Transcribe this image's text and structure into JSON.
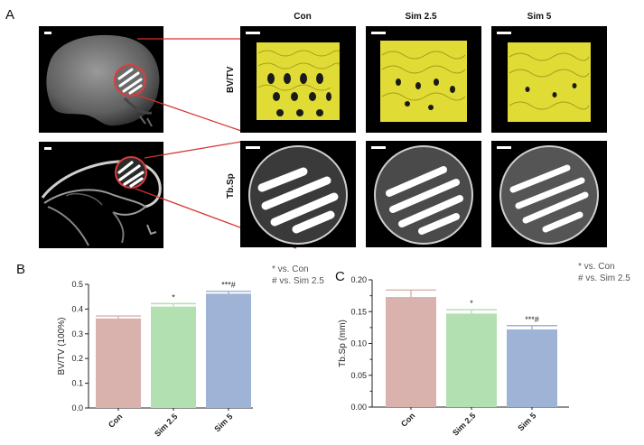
{
  "panels": {
    "a": "A",
    "b": "B",
    "c": "C"
  },
  "micro_ct": {
    "columns": [
      "Con",
      "Sim 2.5",
      "Sim 5"
    ],
    "row_labels": [
      "BV/TV",
      "Tb.Sp"
    ]
  },
  "colors": {
    "con": "#d9b1ad",
    "sim25": "#b3e0b0",
    "sim5": "#9eb3d6",
    "bone_render": "#e8e23a",
    "highlight": "#e03b3b"
  },
  "chart_data": [
    {
      "type": "bar",
      "categories": [
        "Con",
        "Sim 2.5",
        "Sim 5"
      ],
      "values": [
        0.362,
        0.41,
        0.462
      ],
      "errors": [
        0.01,
        0.012,
        0.01
      ],
      "significance": [
        "",
        "*",
        "***#"
      ],
      "ylabel": "BV/TV (100%)",
      "ylim": [
        0.0,
        0.5
      ],
      "yticks": [
        "0.0",
        "0.1",
        "0.2",
        "0.3",
        "0.4",
        "0.5"
      ],
      "legend": [
        "* vs. Con",
        "# vs. Sim 2.5"
      ],
      "legend_position": "top-right"
    },
    {
      "type": "bar",
      "categories": [
        "Con",
        "Sim 2.5",
        "Sim 5"
      ],
      "values": [
        0.173,
        0.147,
        0.122
      ],
      "errors": [
        0.011,
        0.006,
        0.006
      ],
      "significance": [
        "",
        "*",
        "***#"
      ],
      "ylabel": "Tb.Sp (mm)",
      "ylim": [
        0.0,
        0.2
      ],
      "yticks": [
        "0.00",
        "0.05",
        "0.10",
        "0.15",
        "0.20"
      ],
      "yticks_extra": [
        "0.025",
        "0.075",
        "0.125",
        "0.175"
      ],
      "legend": [
        "* vs. Con",
        "# vs. Sim 2.5"
      ],
      "legend_position": "top-right"
    }
  ]
}
